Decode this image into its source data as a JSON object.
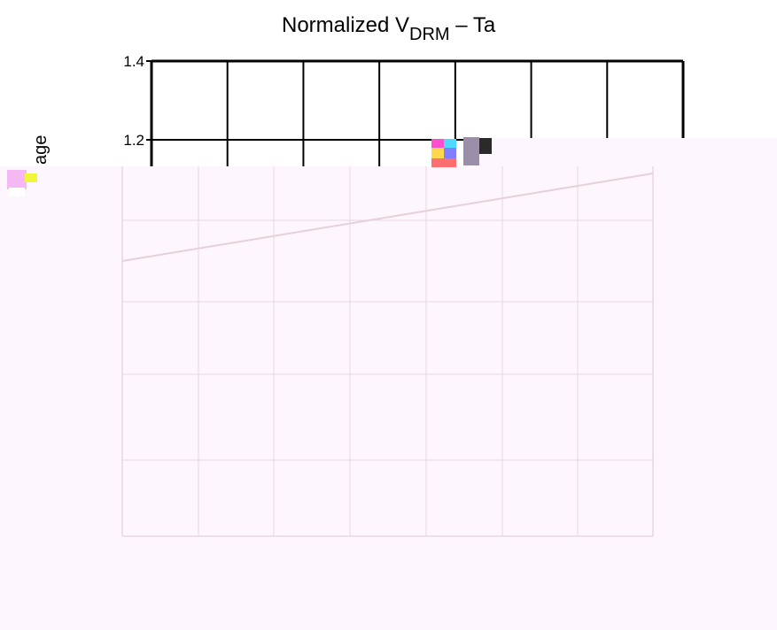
{
  "chart_data": {
    "type": "line",
    "title": "Normalized V",
    "title_subscript": "DRM",
    "title_suffix": " – Ta",
    "ylabel_visible": "age",
    "y_ticks_visible": [
      "1.4",
      "1.2"
    ],
    "ylim": [
      0.0,
      1.4
    ],
    "x_divisions": 7,
    "grid": true,
    "series": [
      {
        "x": [
          0,
          7
        ],
        "y": [
          0.8,
          1.1
        ]
      }
    ],
    "colors": {
      "axes": "#000000",
      "faded_grid": "#e6d6e6",
      "faded_line": "#e8cfd8",
      "overlay": "#fdf4fd"
    }
  }
}
